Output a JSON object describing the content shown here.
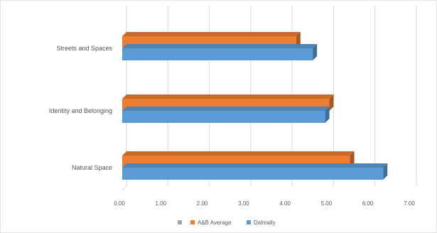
{
  "chart_data": {
    "type": "bar",
    "orientation": "horizontal",
    "style": "3d",
    "categories": [
      "Streets and Spaces",
      "Identity and Belonging",
      "Natural Space"
    ],
    "xlim": [
      0,
      7
    ],
    "xticks": [
      "0.00",
      "1.00",
      "2.00",
      "3.00",
      "4.00",
      "5.00",
      "6.00",
      "7.00"
    ],
    "grid": true,
    "legend_position": "bottom",
    "series": [
      {
        "name": "A&B Average",
        "color": "#ED7D31",
        "values": [
          4.2,
          5.0,
          5.5
        ]
      },
      {
        "name": "Dalmally",
        "color": "#5B9BD5",
        "values": [
          4.6,
          4.9,
          6.3
        ]
      }
    ],
    "legend": [
      {
        "label": "",
        "color": "#A5A5A5"
      },
      {
        "label": "A&B Average",
        "color": "#ED7D31"
      },
      {
        "label": "Dalmally",
        "color": "#5B9BD5"
      }
    ]
  }
}
